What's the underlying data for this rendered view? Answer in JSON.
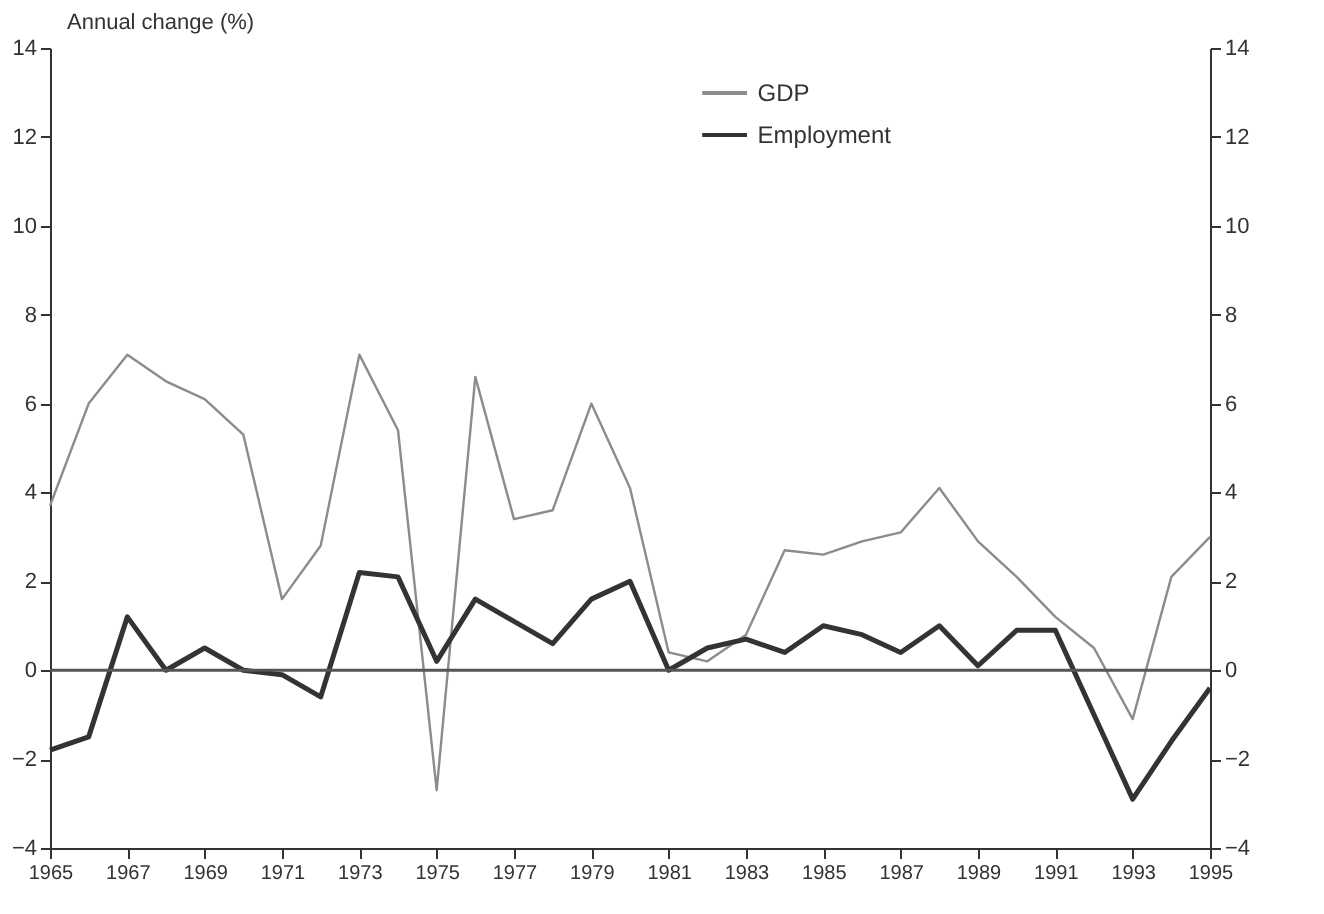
{
  "chart_data": {
    "type": "line",
    "ylabel": "Annual change (%)",
    "x": [
      1965,
      1966,
      1967,
      1968,
      1969,
      1970,
      1971,
      1972,
      1973,
      1974,
      1975,
      1976,
      1977,
      1978,
      1979,
      1980,
      1981,
      1982,
      1983,
      1984,
      1985,
      1986,
      1987,
      1988,
      1989,
      1990,
      1991,
      1992,
      1993,
      1994,
      1995
    ],
    "series": [
      {
        "name": "GDP",
        "color": "#8c8c8c",
        "values": [
          3.7,
          6.0,
          7.1,
          6.5,
          6.1,
          5.3,
          1.6,
          2.8,
          7.1,
          5.4,
          -2.7,
          6.6,
          3.4,
          3.6,
          6.0,
          4.1,
          0.4,
          0.2,
          0.8,
          2.7,
          2.6,
          2.9,
          3.1,
          4.1,
          2.9,
          2.1,
          1.2,
          0.5,
          -1.1,
          2.1,
          3.0
        ]
      },
      {
        "name": "Employment",
        "color": "#333333",
        "values": [
          -1.8,
          -1.5,
          1.2,
          0.0,
          0.5,
          0.0,
          -0.1,
          -0.6,
          2.2,
          2.1,
          0.2,
          1.6,
          1.1,
          0.6,
          1.6,
          2.0,
          0.0,
          0.5,
          0.7,
          0.4,
          1.0,
          0.8,
          0.4,
          1.0,
          0.1,
          0.9,
          0.9,
          -1.0,
          -2.9,
          -1.6,
          -0.4
        ]
      }
    ],
    "xlim": [
      1965,
      1995
    ],
    "xticks": [
      1965,
      1967,
      1969,
      1971,
      1973,
      1975,
      1977,
      1979,
      1981,
      1983,
      1985,
      1987,
      1989,
      1991,
      1993,
      1995
    ],
    "ylim": [
      -4,
      14
    ],
    "yticks": [
      -4,
      -2,
      0,
      2,
      4,
      6,
      8,
      10,
      12,
      14
    ],
    "y2lim": [
      -4,
      14
    ],
    "y2ticks": [
      -4,
      -2,
      0,
      2,
      4,
      6,
      8,
      10,
      12,
      14
    ],
    "ref_lines": [
      {
        "axis": "y",
        "value": 0,
        "color": "#555555"
      }
    ],
    "grid": false,
    "legend": "top",
    "marker": "none",
    "line_style": "solid"
  }
}
